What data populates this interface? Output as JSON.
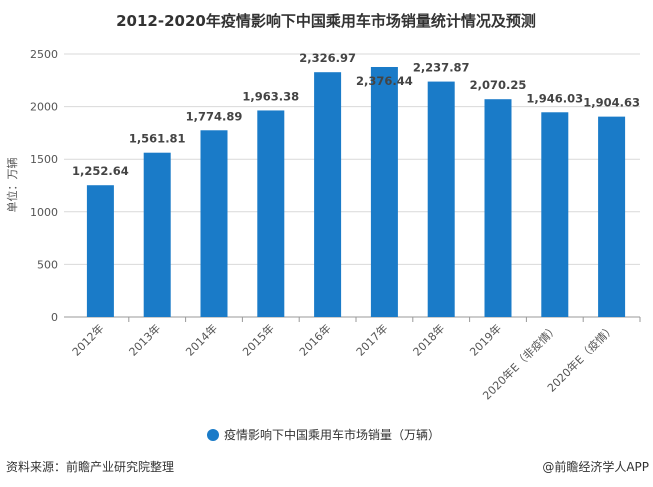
{
  "chart_data": {
    "type": "bar",
    "title": "2012-2020年疫情影响下中国乘用车市场销量统计情况及预测",
    "ylabel": "单位：万辆",
    "xlabel": "",
    "categories": [
      "2012年",
      "2013年",
      "2014年",
      "2015年",
      "2016年",
      "2017年",
      "2018年",
      "2019年",
      "2020年E（非疫情）",
      "2020年E（疫情）"
    ],
    "series": [
      {
        "name": "疫情影响下中国乘用车市场销量（万辆）",
        "values": [
          1252.64,
          1561.81,
          1774.89,
          1963.38,
          2326.97,
          2376.44,
          2237.87,
          2070.25,
          1946.03,
          1904.63
        ]
      }
    ],
    "data_labels": [
      "1,252.64",
      "1,561.81",
      "1,774.89",
      "1,963.38",
      "2,326.97",
      "2,376.44",
      "2,237.87",
      "2,070.25",
      "1,946.03",
      "1,904.63"
    ],
    "ylim": [
      0,
      2500
    ],
    "yticks": [
      0,
      500,
      1000,
      1500,
      2000,
      2500
    ],
    "grid": true,
    "legend_position": "bottom",
    "color": "#1a7bc8"
  },
  "footer": {
    "source": "资料来源：前瞻产业研究院整理",
    "credit": "@前瞻经济学人APP"
  }
}
